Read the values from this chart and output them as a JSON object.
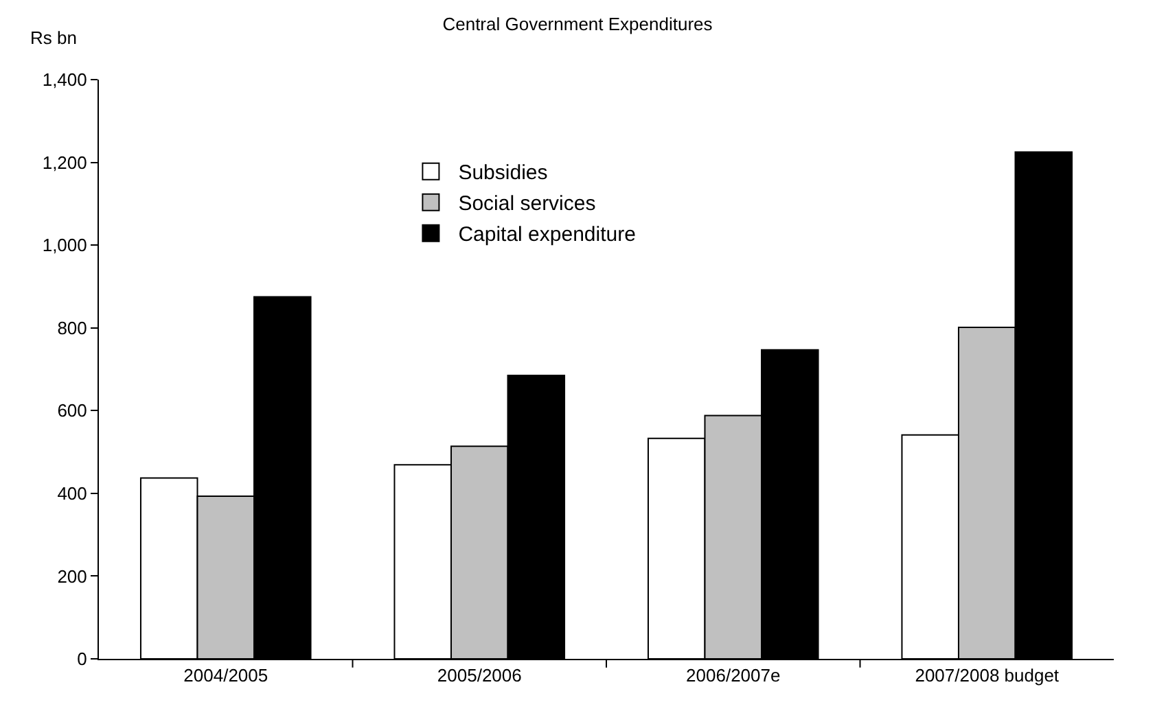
{
  "chart_data": {
    "type": "bar",
    "title": "Central Government Expenditures",
    "ylabel": "Rs bn",
    "categories": [
      "2004/2005",
      "2005/2006",
      "2006/2007e",
      "2007/2008 budget"
    ],
    "series": [
      {
        "name": "Subsidies",
        "color": "#ffffff",
        "values": [
          437,
          469,
          533,
          541
        ]
      },
      {
        "name": "Social services",
        "color": "#c0c0c0",
        "values": [
          393,
          514,
          588,
          801
        ]
      },
      {
        "name": "Capital expenditure",
        "color": "#000000",
        "values": [
          875,
          685,
          747,
          1225
        ]
      }
    ],
    "ylim": [
      0,
      1400
    ],
    "yticks": [
      {
        "value": 0,
        "label": "0"
      },
      {
        "value": 200,
        "label": "200"
      },
      {
        "value": 400,
        "label": "400"
      },
      {
        "value": 600,
        "label": "600"
      },
      {
        "value": 800,
        "label": "800"
      },
      {
        "value": 1000,
        "label": "1,000"
      },
      {
        "value": 1200,
        "label": "1,200"
      },
      {
        "value": 1400,
        "label": "1,400"
      }
    ],
    "grid": false,
    "legend": "top"
  }
}
